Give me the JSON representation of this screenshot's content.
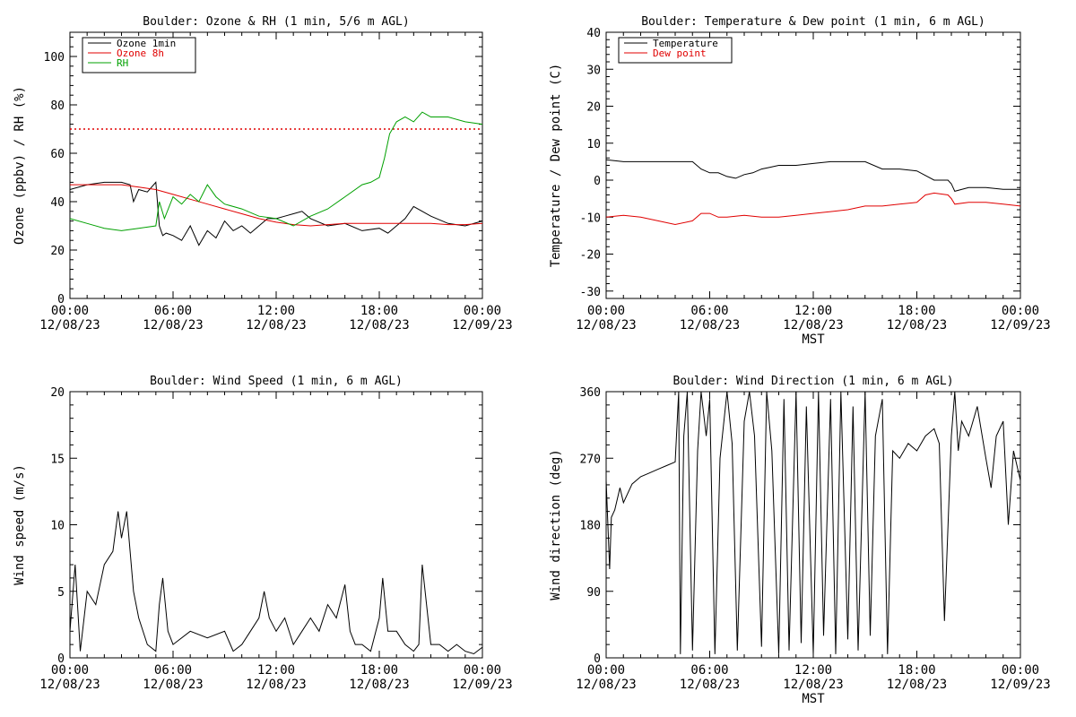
{
  "chart_data": [
    {
      "type": "line",
      "title": "Boulder: Ozone & RH (1 min, 5/6 m AGL)",
      "ylabel": "Ozone (ppbv) / RH (%)",
      "ylim": [
        0,
        110
      ],
      "yticks": [
        0,
        20,
        40,
        60,
        80,
        100
      ],
      "xlim": [
        0,
        24
      ],
      "xticks": [
        {
          "time": "00:00",
          "date": "12/08/23"
        },
        {
          "time": "06:00",
          "date": "12/08/23"
        },
        {
          "time": "12:00",
          "date": "12/08/23"
        },
        {
          "time": "18:00",
          "date": "12/08/23"
        },
        {
          "time": "00:00",
          "date": "12/09/23"
        }
      ],
      "xlabel": "",
      "legend": "top-left",
      "grid": false,
      "reference_line": {
        "y": 70,
        "color": "#e00000",
        "style": "dotted"
      },
      "series": [
        {
          "name": "Ozone 1min",
          "color": "#000000",
          "x": [
            0,
            1,
            2,
            3,
            3.5,
            3.7,
            4,
            4.5,
            5,
            5.2,
            5.4,
            5.6,
            6,
            6.5,
            7,
            7.5,
            8,
            8.5,
            9,
            9.5,
            10,
            10.5,
            11,
            11.5,
            12,
            12.5,
            13,
            13.5,
            14,
            15,
            16,
            17,
            18,
            18.5,
            19,
            19.5,
            20,
            21,
            22,
            23,
            24
          ],
          "y": [
            45,
            47,
            48,
            48,
            47,
            40,
            45,
            44,
            48,
            30,
            26,
            27,
            26,
            24,
            30,
            22,
            28,
            25,
            32,
            28,
            30,
            27,
            30,
            33,
            33,
            34,
            35,
            36,
            33,
            30,
            31,
            28,
            29,
            27,
            30,
            33,
            38,
            34,
            31,
            30,
            32
          ]
        },
        {
          "name": "Ozone 8h",
          "color": "#e00000",
          "x": [
            0,
            1,
            2,
            3,
            4,
            5,
            6,
            7,
            8,
            9,
            10,
            11,
            12,
            13,
            14,
            15,
            16,
            17,
            18,
            19,
            20,
            21,
            22,
            23,
            24
          ],
          "y": [
            47,
            47,
            47,
            47,
            46,
            45,
            43,
            41,
            39,
            37,
            35,
            33,
            31.5,
            30.5,
            30,
            30.5,
            31,
            31,
            31,
            31,
            31,
            31,
            30.5,
            30.5,
            31
          ]
        },
        {
          "name": "RH",
          "color": "#00a000",
          "x": [
            0,
            1,
            2,
            3,
            4,
            5,
            5.2,
            5.5,
            6,
            6.5,
            7,
            7.5,
            8,
            8.5,
            9,
            10,
            11,
            12,
            13,
            14,
            15,
            16,
            17,
            17.5,
            18,
            18.3,
            18.6,
            19,
            19.5,
            20,
            20.5,
            21,
            22,
            23,
            24
          ],
          "y": [
            33,
            31,
            29,
            28,
            29,
            30,
            40,
            33,
            42,
            39,
            43,
            40,
            47,
            42,
            39,
            37,
            34,
            33,
            30,
            34,
            37,
            42,
            47,
            48,
            50,
            58,
            68,
            73,
            75,
            73,
            77,
            75,
            75,
            73,
            72
          ]
        }
      ]
    },
    {
      "type": "line",
      "title": "Boulder: Temperature & Dew point (1 min, 6 m AGL)",
      "ylabel": "Temperature / Dew point (C)",
      "ylim": [
        -32,
        40
      ],
      "yticks": [
        -30,
        -20,
        -10,
        0,
        10,
        20,
        30,
        40
      ],
      "xlim": [
        0,
        24
      ],
      "xticks": [
        {
          "time": "00:00",
          "date": "12/08/23"
        },
        {
          "time": "06:00",
          "date": "12/08/23"
        },
        {
          "time": "12:00",
          "date": "12/08/23"
        },
        {
          "time": "18:00",
          "date": "12/08/23"
        },
        {
          "time": "00:00",
          "date": "12/09/23"
        }
      ],
      "xlabel": "MST",
      "legend": "top-left",
      "grid": false,
      "series": [
        {
          "name": "Temperature",
          "color": "#000000",
          "x": [
            0,
            1,
            2,
            3,
            4,
            5,
            5.5,
            6,
            6.5,
            7,
            7.5,
            8,
            8.5,
            9,
            9.5,
            10,
            11,
            12,
            13,
            14,
            15,
            16,
            17,
            18,
            19,
            19.8,
            20,
            20.2,
            21,
            22,
            23,
            24
          ],
          "y": [
            5.5,
            5,
            5,
            5,
            5,
            5,
            3,
            2,
            2,
            1,
            0.5,
            1.5,
            2,
            3,
            3.5,
            4,
            4,
            4.5,
            5,
            5,
            5,
            3,
            3,
            2.5,
            0,
            0,
            -1,
            -3,
            -2,
            -2,
            -2.5,
            -2.5
          ]
        },
        {
          "name": "Dew point",
          "color": "#e00000",
          "x": [
            0,
            1,
            2,
            3,
            4,
            5,
            5.5,
            6,
            6.5,
            7,
            8,
            9,
            10,
            11,
            12,
            13,
            14,
            15,
            16,
            17,
            18,
            18.5,
            19,
            19.8,
            20,
            20.2,
            21,
            22,
            23,
            24
          ],
          "y": [
            -10,
            -9.5,
            -10,
            -11,
            -12,
            -11,
            -9,
            -9,
            -10,
            -10,
            -9.5,
            -10,
            -10,
            -9.5,
            -9,
            -8.5,
            -8,
            -7,
            -7,
            -6.5,
            -6,
            -4,
            -3.5,
            -4,
            -5,
            -6.5,
            -6,
            -6,
            -6.5,
            -7
          ]
        }
      ]
    },
    {
      "type": "line",
      "title": "Boulder: Wind Speed (1 min, 6 m AGL)",
      "ylabel": "Wind speed (m/s)",
      "ylim": [
        0,
        20
      ],
      "yticks": [
        0,
        5,
        10,
        15,
        20
      ],
      "xlim": [
        0,
        24
      ],
      "xticks": [
        {
          "time": "00:00",
          "date": "12/08/23"
        },
        {
          "time": "06:00",
          "date": "12/08/23"
        },
        {
          "time": "12:00",
          "date": "12/08/23"
        },
        {
          "time": "18:00",
          "date": "12/08/23"
        },
        {
          "time": "00:00",
          "date": "12/09/23"
        }
      ],
      "xlabel": "",
      "grid": false,
      "series": [
        {
          "color": "#000000",
          "x": [
            0,
            0.3,
            0.6,
            1,
            1.5,
            2,
            2.5,
            2.8,
            3,
            3.3,
            3.5,
            3.7,
            4,
            4.5,
            5,
            5.2,
            5.4,
            5.7,
            6,
            7,
            8,
            9,
            9.5,
            10,
            10.5,
            11,
            11.3,
            11.6,
            12,
            12.5,
            13,
            13.5,
            14,
            14.5,
            15,
            15.5,
            16,
            16.3,
            16.6,
            17,
            17.5,
            18,
            18.2,
            18.5,
            19,
            19.5,
            20,
            20.3,
            20.5,
            21,
            21.5,
            22,
            22.5,
            23,
            23.5,
            24
          ],
          "y": [
            2,
            7,
            0.5,
            5,
            4,
            7,
            8,
            11,
            9,
            11,
            8,
            5,
            3,
            1,
            0.5,
            4,
            6,
            2,
            1,
            2,
            1.5,
            2,
            0.5,
            1,
            2,
            3,
            5,
            3,
            2,
            3,
            1,
            2,
            3,
            2,
            4,
            3,
            5.5,
            2,
            1,
            1,
            0.5,
            3,
            6,
            2,
            2,
            1,
            0.5,
            1,
            7,
            1,
            1,
            0.5,
            1,
            0.5,
            0.3,
            0.8
          ]
        }
      ]
    },
    {
      "type": "line",
      "title": "Boulder: Wind Direction (1 min, 6 m AGL)",
      "ylabel": "Wind direction (deg)",
      "ylim": [
        0,
        360
      ],
      "yticks": [
        0,
        90,
        180,
        270,
        360
      ],
      "xlim": [
        0,
        24
      ],
      "xticks": [
        {
          "time": "00:00",
          "date": "12/08/23"
        },
        {
          "time": "06:00",
          "date": "12/08/23"
        },
        {
          "time": "12:00",
          "date": "12/08/23"
        },
        {
          "time": "18:00",
          "date": "12/08/23"
        },
        {
          "time": "00:00",
          "date": "12/09/23"
        }
      ],
      "xlabel": "MST",
      "grid": false,
      "series": [
        {
          "color": "#000000",
          "x": [
            0,
            0.2,
            0.3,
            0.5,
            0.8,
            1,
            1.5,
            2,
            2.5,
            3,
            3.5,
            4,
            4.2,
            4.3,
            4.5,
            4.7,
            5,
            5.3,
            5.5,
            5.8,
            6,
            6.3,
            6.6,
            7,
            7.3,
            7.6,
            8,
            8.3,
            8.6,
            9,
            9.3,
            9.6,
            10,
            10.3,
            10.6,
            11,
            11.3,
            11.6,
            12,
            12.3,
            12.6,
            13,
            13.3,
            13.6,
            14,
            14.3,
            14.6,
            15,
            15.3,
            15.6,
            16,
            16.3,
            16.6,
            17,
            17.5,
            18,
            18.5,
            19,
            19.3,
            19.6,
            20,
            20.2,
            20.4,
            20.6,
            21,
            21.5,
            22,
            22.3,
            22.6,
            23,
            23.3,
            23.6,
            24
          ],
          "y": [
            240,
            120,
            190,
            200,
            230,
            210,
            235,
            245,
            250,
            255,
            260,
            265,
            360,
            5,
            300,
            360,
            10,
            280,
            360,
            300,
            350,
            5,
            270,
            360,
            290,
            10,
            320,
            360,
            300,
            15,
            360,
            280,
            5,
            350,
            10,
            360,
            20,
            340,
            5,
            360,
            30,
            350,
            5,
            360,
            25,
            340,
            10,
            360,
            30,
            300,
            350,
            5,
            280,
            270,
            290,
            280,
            300,
            310,
            290,
            50,
            300,
            360,
            280,
            320,
            300,
            340,
            270,
            230,
            300,
            320,
            180,
            280,
            240
          ]
        }
      ]
    }
  ]
}
